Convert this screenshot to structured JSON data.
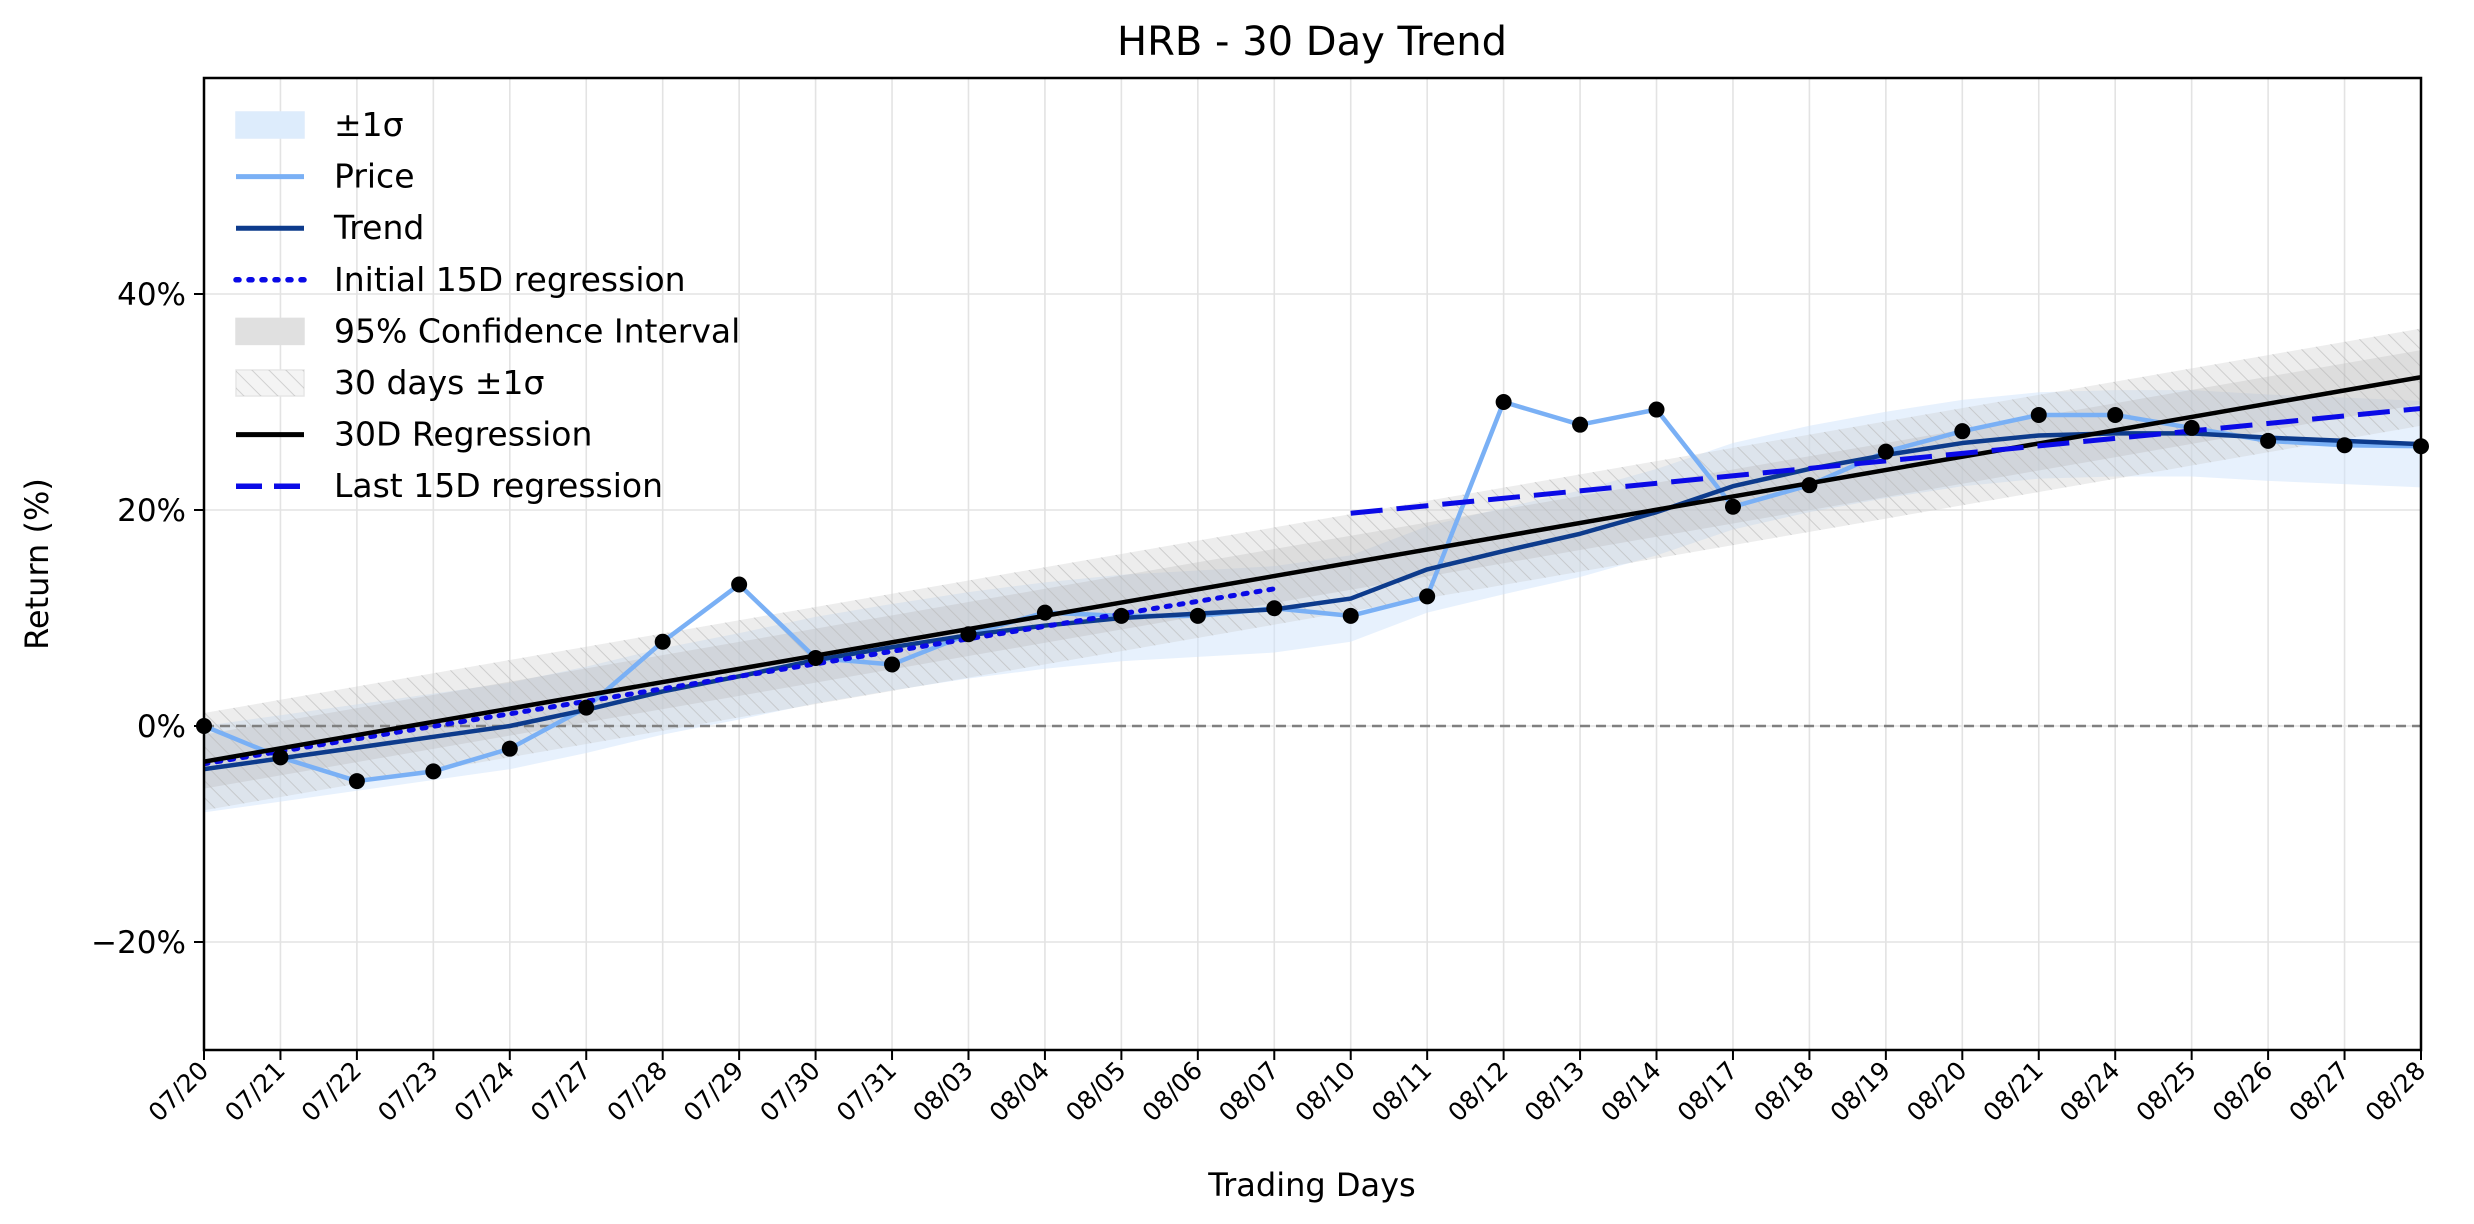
{
  "chart_data": {
    "type": "line",
    "title": "HRB - 30 Day Trend",
    "xlabel": "Trading Days",
    "ylabel": "Return (%)",
    "ylim": [
      -30,
      60
    ],
    "yticks": [
      -20,
      0,
      20,
      40
    ],
    "ytick_labels": [
      "−20%",
      "0%",
      "20%",
      "40%"
    ],
    "grid": true,
    "legend_position": "top-left",
    "x": [
      "07/20",
      "07/21",
      "07/22",
      "07/23",
      "07/24",
      "07/27",
      "07/28",
      "07/29",
      "07/30",
      "07/31",
      "08/03",
      "08/04",
      "08/05",
      "08/06",
      "08/07",
      "08/10",
      "08/11",
      "08/12",
      "08/13",
      "08/14",
      "08/17",
      "08/18",
      "08/19",
      "08/20",
      "08/21",
      "08/24",
      "08/25",
      "08/26",
      "08/27",
      "08/28"
    ],
    "series": [
      {
        "name": "Price",
        "color": "#7ab0f5",
        "style": "solid",
        "values": [
          0.0,
          -2.9,
          -5.1,
          -4.2,
          -2.1,
          1.7,
          7.8,
          13.1,
          6.3,
          5.7,
          8.5,
          10.5,
          10.2,
          10.2,
          10.9,
          10.2,
          12.0,
          30.0,
          27.9,
          29.3,
          20.3,
          22.3,
          25.4,
          27.3,
          28.8,
          28.8,
          27.6,
          26.4,
          26.0,
          25.9
        ]
      },
      {
        "name": "Trend",
        "color": "#0d3b8c",
        "style": "solid",
        "values": [
          -4.0,
          -3.0,
          -2.0,
          -1.0,
          0.0,
          1.5,
          3.2,
          4.6,
          6.1,
          7.3,
          8.4,
          9.3,
          10.0,
          10.4,
          10.8,
          11.8,
          14.5,
          16.2,
          17.8,
          19.8,
          22.2,
          23.8,
          25.1,
          26.2,
          26.9,
          27.1,
          27.1,
          26.7,
          26.4,
          26.1
        ]
      },
      {
        "name": "Initial 15D regression",
        "color": "#0a0ae6",
        "style": "dotted",
        "from": 0,
        "to": 14,
        "start": -3.5,
        "end": 12.7
      },
      {
        "name": "30D Regression",
        "color": "#000000",
        "style": "solid",
        "from": 0,
        "to": 29,
        "start": -3.3,
        "end": 32.3
      },
      {
        "name": "Last 15D regression",
        "color": "#0a0ae6",
        "style": "dashed",
        "from": 15,
        "to": 29,
        "start": 19.7,
        "end": 29.4
      }
    ],
    "bands": [
      {
        "name": "±1σ",
        "color": "#cfe4fb",
        "opacity": 0.5,
        "upper_offset": 4.0,
        "lower_offset": -4.0
      },
      {
        "name": "95% Confidence Interval",
        "color": "#9a9a9a",
        "opacity": 0.25,
        "upper_offset": 2.5,
        "lower_offset": -2.5
      },
      {
        "name": "30 days ±1σ",
        "color": "#cccccc",
        "opacity": 0.35,
        "hatched": true,
        "upper_offset": 4.5,
        "lower_offset": -4.5
      }
    ],
    "reference_line": {
      "y": 0,
      "color": "#808080",
      "style": "dashed"
    },
    "legend": [
      {
        "label": "±1σ",
        "kind": "patch",
        "color": "#ddecfc"
      },
      {
        "label": "Price",
        "kind": "line",
        "color": "#7ab0f5",
        "style": "solid"
      },
      {
        "label": "Trend",
        "kind": "line",
        "color": "#0d3b8c",
        "style": "solid"
      },
      {
        "label": "Initial 15D regression",
        "kind": "line",
        "color": "#0a0ae6",
        "style": "dotted"
      },
      {
        "label": "95% Confidence Interval",
        "kind": "patch",
        "color": "#e0e0e0"
      },
      {
        "label": "30 days ±1σ",
        "kind": "hatch",
        "color": "#f4f4f4"
      },
      {
        "label": "30D Regression",
        "kind": "line",
        "color": "#000000",
        "style": "solid"
      },
      {
        "label": "Last 15D regression",
        "kind": "line",
        "color": "#0a0ae6",
        "style": "dashed"
      }
    ]
  }
}
